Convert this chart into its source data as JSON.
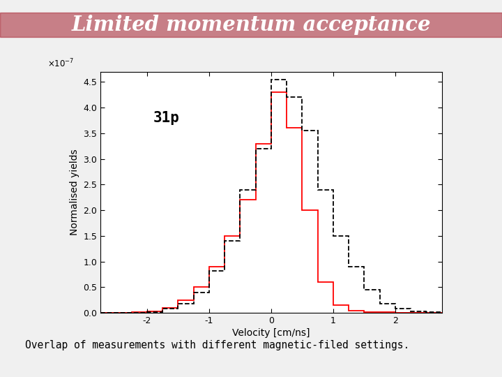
{
  "title": "Limited momentum acceptance",
  "subtitle": "Overlap of measurements with different magnetic-filed settings.",
  "label_31p": "31p",
  "xlabel": "Velocity [cm/ns]",
  "ylabel": "Normalised yields",
  "title_bg_color": "#8B0000",
  "title_text_color": "#FFFFFF",
  "bottom_bar_color": "#8B0000",
  "plot_bg_color": "#FFFFFF",
  "slide_bg_color": "#F0F0F0",
  "xlim": [
    -2.75,
    2.75
  ],
  "ylim_raw": [
    0.0,
    4.7
  ],
  "ytick_scale": 1e-07,
  "yticks_raw": [
    0.0,
    0.5,
    1.0,
    1.5,
    2.0,
    2.5,
    3.0,
    3.5,
    4.0,
    4.5
  ],
  "xticks": [
    -2,
    -1,
    0,
    1,
    2
  ],
  "red_bin_edges": [
    -2.75,
    -2.5,
    -2.25,
    -2.0,
    -1.75,
    -1.5,
    -1.25,
    -1.0,
    -0.75,
    -0.5,
    -0.25,
    0.0,
    0.25,
    0.5,
    0.75,
    1.0,
    1.25,
    1.5,
    1.75,
    2.0,
    2.25,
    2.5,
    2.75
  ],
  "red_values_raw": [
    0.0,
    0.0,
    0.01,
    0.03,
    0.1,
    0.25,
    0.5,
    0.9,
    1.5,
    2.2,
    3.3,
    4.3,
    3.6,
    2.0,
    0.6,
    0.15,
    0.05,
    0.02,
    0.01,
    0.0,
    0.0,
    0.0
  ],
  "black_bin_edges": [
    -2.75,
    -2.5,
    -2.25,
    -2.0,
    -1.75,
    -1.5,
    -1.25,
    -1.0,
    -0.75,
    -0.5,
    -0.25,
    0.0,
    0.25,
    0.5,
    0.75,
    1.0,
    1.25,
    1.5,
    1.75,
    2.0,
    2.25,
    2.5,
    2.75
  ],
  "black_values_raw": [
    0.0,
    0.0,
    0.0,
    0.02,
    0.08,
    0.18,
    0.4,
    0.82,
    1.4,
    2.4,
    3.2,
    4.55,
    4.2,
    3.55,
    2.4,
    1.5,
    0.9,
    0.45,
    0.18,
    0.08,
    0.03,
    0.01
  ]
}
